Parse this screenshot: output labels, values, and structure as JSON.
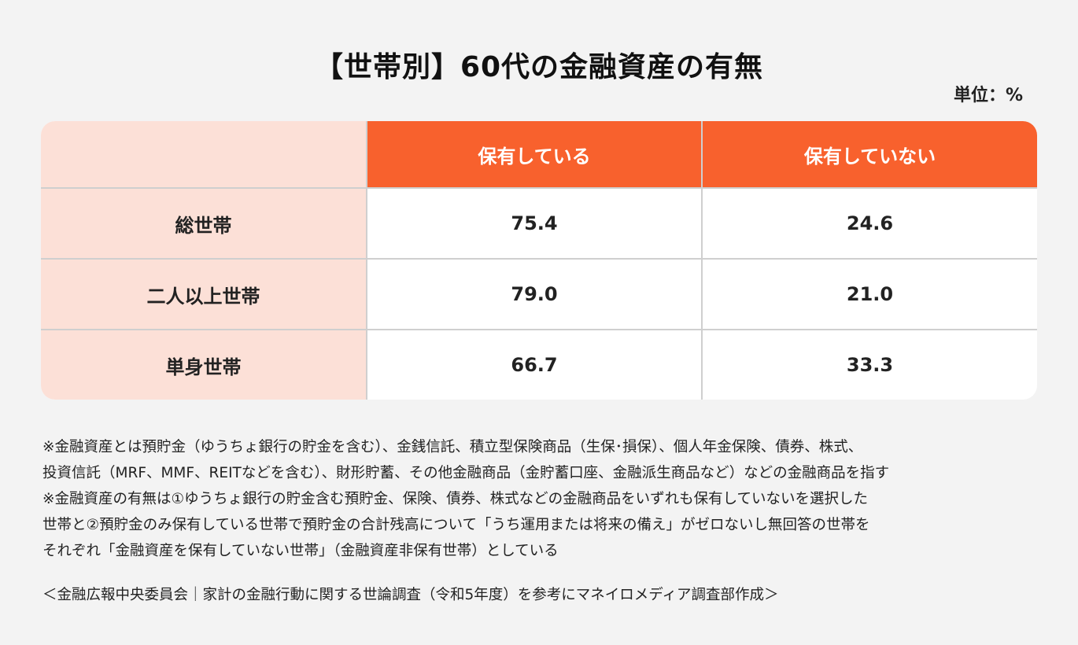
{
  "header": {
    "title": "【世帯別】60代の金融資産の有無",
    "unit": "単位：%"
  },
  "table": {
    "columns": [
      "",
      "保有している",
      "保有していない"
    ],
    "rows": [
      {
        "label": "総世帯",
        "values": [
          "75.4",
          "24.6"
        ]
      },
      {
        "label": "二人以上世帯",
        "values": [
          "79.0",
          "21.0"
        ]
      },
      {
        "label": "単身世帯",
        "values": [
          "66.7",
          "33.3"
        ]
      }
    ]
  },
  "colors": {
    "header_bg": "#f8612d",
    "row_label_bg": "#fce0d7",
    "page_bg": "#f3f3f3"
  },
  "notes": [
    "※金融資産とは預貯金（ゆうちょ銀行の貯金を含む）、金銭信託、積立型保険商品（生保･損保）、個人年金保険、債券、株式、",
    "投資信託（MRF、MMF、REITなどを含む）、財形貯蓄、その他金融商品（金貯蓄口座、金融派生商品など）などの金融商品を指す",
    "※金融資産の有無は①ゆうちょ銀行の貯金含む預貯金、保険、債券、株式などの金融商品をいずれも保有していないを選択した",
    "世帯と②預貯金のみ保有している世帯で預貯金の合計残高について「うち運用または将来の備え」がゼロないし無回答の世帯を",
    "それぞれ「金融資産を保有していない世帯」（金融資産非保有世帯）としている"
  ],
  "source": "＜金融広報中央委員会｜家計の金融行動に関する世論調査（令和5年度）を参考にマネイロメディア調査部作成＞",
  "chart_data": {
    "type": "table",
    "title": "【世帯別】60代の金融資産の有無",
    "unit": "%",
    "categories": [
      "総世帯",
      "二人以上世帯",
      "単身世帯"
    ],
    "series": [
      {
        "name": "保有している",
        "values": [
          75.4,
          79.0,
          66.7
        ]
      },
      {
        "name": "保有していない",
        "values": [
          24.6,
          21.0,
          33.3
        ]
      }
    ]
  }
}
